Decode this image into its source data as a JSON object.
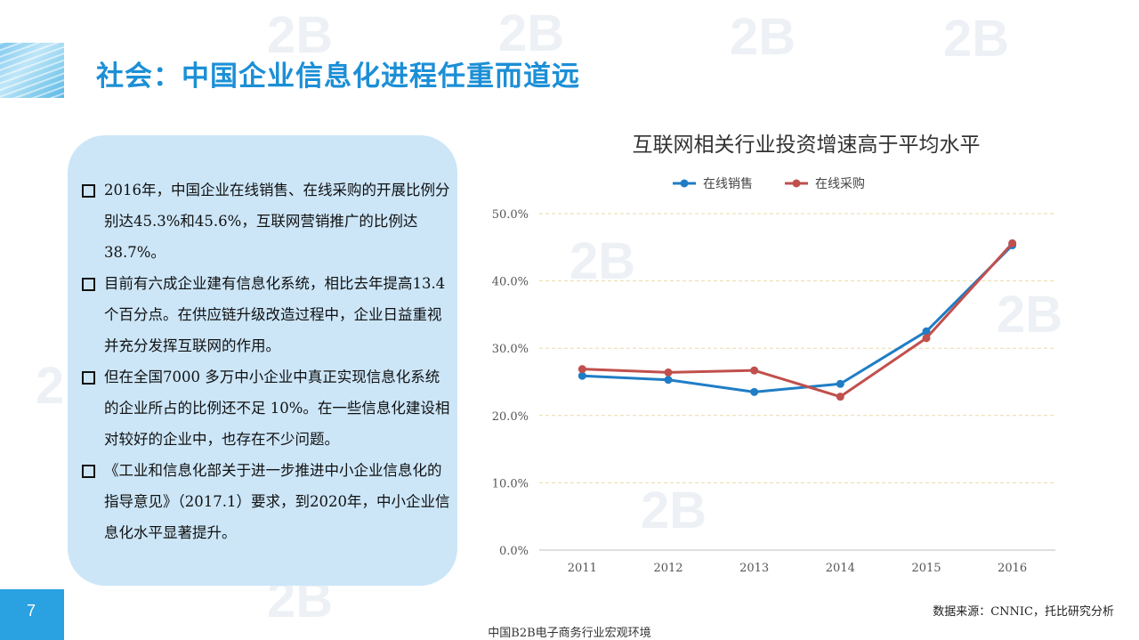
{
  "slide": {
    "title": "社会：中国企业信息化进程任重而道远",
    "page_number": "7",
    "footer": "中国B2B电子商务行业宏观环境",
    "source": "数据来源：CNNIC，托比研究分析",
    "watermark": "2B"
  },
  "bullets": [
    "2016年，中国企业在线销售、在线采购的开展比例分别达45.3%和45.6%，互联网营销推广的比例达38.7%。",
    "目前有六成企业建有信息化系统，相比去年提高13.4个百分点。在供应链升级改造过程中，企业日益重视并充分发挥互联网的作用。",
    "但在全国7000 多万中小企业中真正实现信息化系统的企业所占的比例还不足 10%。在一些信息化建设相对较好的企业中，也存在不少问题。",
    "《工业和信息化部关于进一步推进中小企业信息化的指导意见》（2017.1）要求，到2020年，中小企业信息化水平显著提升。"
  ],
  "chart_data": {
    "type": "line",
    "title": "互联网相关行业投资增速高于平均水平",
    "categories": [
      "2011",
      "2012",
      "2013",
      "2014",
      "2015",
      "2016"
    ],
    "series": [
      {
        "name": "在线销售",
        "color": "#1f7dc6",
        "values": [
          25.9,
          25.3,
          23.5,
          24.7,
          32.5,
          45.3
        ]
      },
      {
        "name": "在线采购",
        "color": "#c0504d",
        "values": [
          26.9,
          26.4,
          26.7,
          22.8,
          31.5,
          45.6
        ]
      }
    ],
    "y_ticks": [
      "0.0%",
      "10.0%",
      "20.0%",
      "30.0%",
      "40.0%",
      "50.0%"
    ],
    "ylim": [
      0,
      50
    ],
    "grid": true,
    "legend_position": "top"
  }
}
